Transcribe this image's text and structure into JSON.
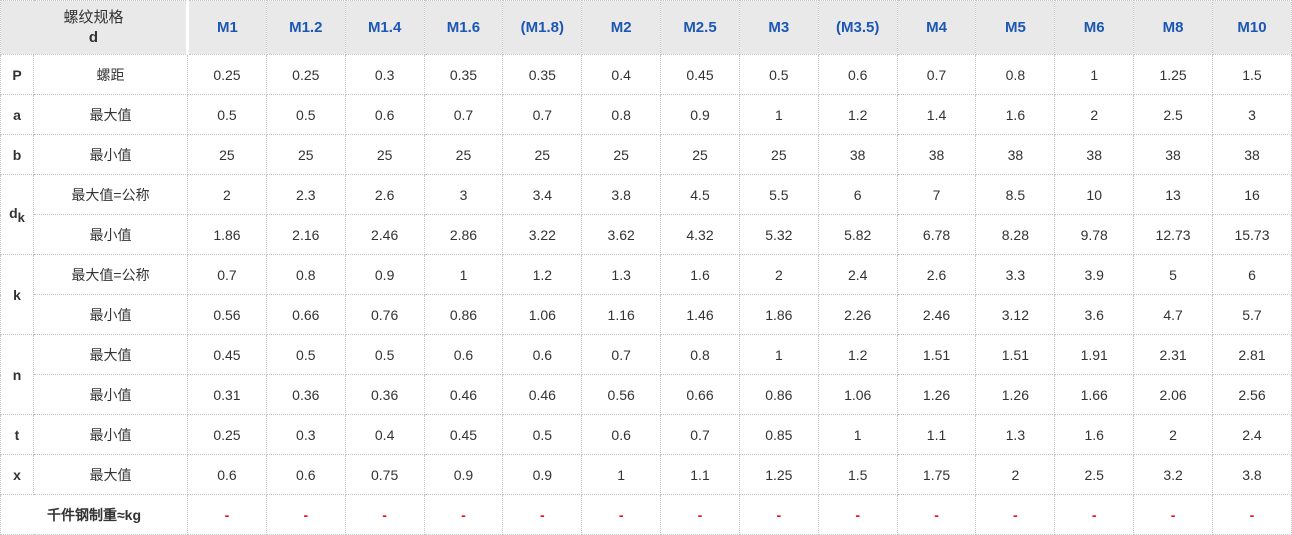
{
  "table": {
    "header": {
      "spec_label_line1": "螺纹规格",
      "spec_label_line2": "d",
      "columns": [
        "M1",
        "M1.2",
        "M1.4",
        "M1.6",
        "(M1.8)",
        "M2",
        "M2.5",
        "M3",
        "(M3.5)",
        "M4",
        "M5",
        "M6",
        "M8",
        "M10"
      ]
    },
    "rows": [
      {
        "param": "P",
        "sub": "",
        "rowspan": 1,
        "label": "螺距",
        "values": [
          "0.25",
          "0.25",
          "0.3",
          "0.35",
          "0.35",
          "0.4",
          "0.45",
          "0.5",
          "0.6",
          "0.7",
          "0.8",
          "1",
          "1.25",
          "1.5"
        ]
      },
      {
        "param": "a",
        "sub": "",
        "rowspan": 1,
        "label": "最大值",
        "values": [
          "0.5",
          "0.5",
          "0.6",
          "0.7",
          "0.7",
          "0.8",
          "0.9",
          "1",
          "1.2",
          "1.4",
          "1.6",
          "2",
          "2.5",
          "3"
        ]
      },
      {
        "param": "b",
        "sub": "",
        "rowspan": 1,
        "label": "最小值",
        "values": [
          "25",
          "25",
          "25",
          "25",
          "25",
          "25",
          "25",
          "25",
          "38",
          "38",
          "38",
          "38",
          "38",
          "38"
        ]
      },
      {
        "param": "d",
        "sub": "k",
        "rowspan": 2,
        "label": "最大值=公称",
        "values": [
          "2",
          "2.3",
          "2.6",
          "3",
          "3.4",
          "3.8",
          "4.5",
          "5.5",
          "6",
          "7",
          "8.5",
          "10",
          "13",
          "16"
        ]
      },
      {
        "param": "",
        "sub": "",
        "rowspan": 0,
        "label": "最小值",
        "values": [
          "1.86",
          "2.16",
          "2.46",
          "2.86",
          "3.22",
          "3.62",
          "4.32",
          "5.32",
          "5.82",
          "6.78",
          "8.28",
          "9.78",
          "12.73",
          "15.73"
        ]
      },
      {
        "param": "k",
        "sub": "",
        "rowspan": 2,
        "label": "最大值=公称",
        "values": [
          "0.7",
          "0.8",
          "0.9",
          "1",
          "1.2",
          "1.3",
          "1.6",
          "2",
          "2.4",
          "2.6",
          "3.3",
          "3.9",
          "5",
          "6"
        ]
      },
      {
        "param": "",
        "sub": "",
        "rowspan": 0,
        "label": "最小值",
        "values": [
          "0.56",
          "0.66",
          "0.76",
          "0.86",
          "1.06",
          "1.16",
          "1.46",
          "1.86",
          "2.26",
          "2.46",
          "3.12",
          "3.6",
          "4.7",
          "5.7"
        ]
      },
      {
        "param": "n",
        "sub": "",
        "rowspan": 2,
        "label": "最大值",
        "values": [
          "0.45",
          "0.5",
          "0.5",
          "0.6",
          "0.6",
          "0.7",
          "0.8",
          "1",
          "1.2",
          "1.51",
          "1.51",
          "1.91",
          "2.31",
          "2.81"
        ]
      },
      {
        "param": "",
        "sub": "",
        "rowspan": 0,
        "label": "最小值",
        "values": [
          "0.31",
          "0.36",
          "0.36",
          "0.46",
          "0.46",
          "0.56",
          "0.66",
          "0.86",
          "1.06",
          "1.26",
          "1.26",
          "1.66",
          "2.06",
          "2.56"
        ]
      },
      {
        "param": "t",
        "sub": "",
        "rowspan": 1,
        "label": "最小值",
        "values": [
          "0.25",
          "0.3",
          "0.4",
          "0.45",
          "0.5",
          "0.6",
          "0.7",
          "0.85",
          "1",
          "1.1",
          "1.3",
          "1.6",
          "2",
          "2.4"
        ]
      },
      {
        "param": "x",
        "sub": "",
        "rowspan": 1,
        "label": "最大值",
        "values": [
          "0.6",
          "0.6",
          "0.75",
          "0.9",
          "0.9",
          "1",
          "1.1",
          "1.25",
          "1.5",
          "1.75",
          "2",
          "2.5",
          "3.2",
          "3.8"
        ]
      }
    ],
    "footer": {
      "label": "千件钢制重≈kg",
      "values": [
        "-",
        "-",
        "-",
        "-",
        "-",
        "-",
        "-",
        "-",
        "-",
        "-",
        "-",
        "-",
        "-",
        "-"
      ]
    },
    "colors": {
      "header_bg": "#e9e9e9",
      "header_text_blue": "#1c57b3",
      "body_text": "#333333",
      "border": "#c6c6c6",
      "footer_dash_red": "#ee1111"
    },
    "layout": {
      "param_col_width": "33",
      "label_col_width": "154"
    }
  }
}
